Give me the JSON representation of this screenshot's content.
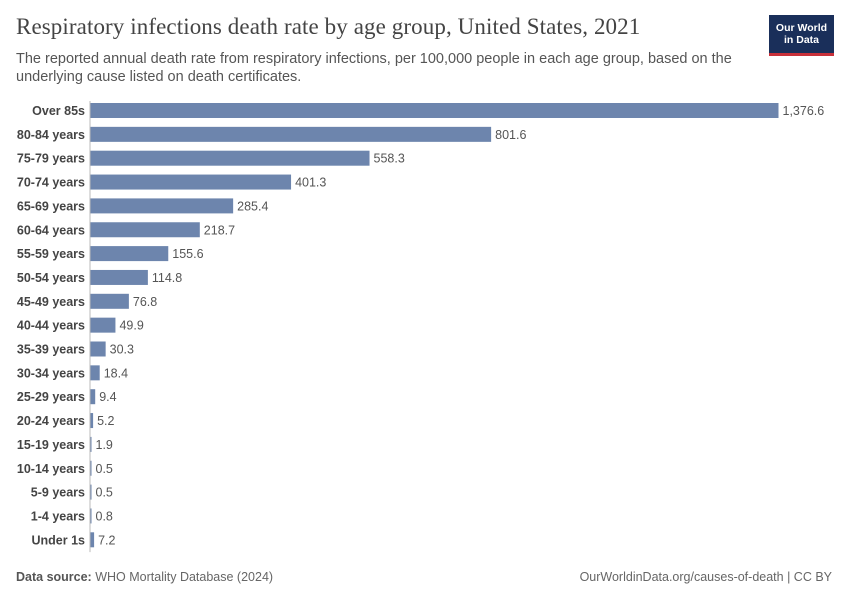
{
  "chart_data": {
    "type": "bar",
    "orientation": "horizontal",
    "title": "Respiratory infections death rate by age group, United States, 2021",
    "subtitle": "The reported annual death rate from respiratory infections, per 100,000 people in each age group, based on the underlying cause listed on death certificates.",
    "categories": [
      "Over 85s",
      "80-84 years",
      "75-79 years",
      "70-74 years",
      "65-69 years",
      "60-64 years",
      "55-59 years",
      "50-54 years",
      "45-49 years",
      "40-44 years",
      "35-39 years",
      "30-34 years",
      "25-29 years",
      "20-24 years",
      "15-19 years",
      "10-14 years",
      "5-9 years",
      "1-4 years",
      "Under 1s"
    ],
    "values": [
      1376.6,
      801.6,
      558.3,
      401.3,
      285.4,
      218.7,
      155.6,
      114.8,
      76.8,
      49.9,
      30.3,
      18.4,
      9.4,
      5.2,
      1.9,
      0.5,
      0.5,
      0.8,
      7.2
    ],
    "value_labels": [
      "1,376.6",
      "801.6",
      "558.3",
      "401.3",
      "285.4",
      "218.7",
      "155.6",
      "114.8",
      "76.8",
      "49.9",
      "30.3",
      "18.4",
      "9.4",
      "5.2",
      "1.9",
      "0.5",
      "0.5",
      "0.8",
      "7.2"
    ],
    "xlim": [
      0,
      1376.6
    ],
    "bar_color": "#6d85ad"
  },
  "logo": {
    "line1": "Our World",
    "line2": "in Data"
  },
  "footer": {
    "source_label": "Data source:",
    "source_text": "WHO Mortality Database (2024)",
    "url_license": "OurWorldinData.org/causes-of-death | CC BY"
  }
}
